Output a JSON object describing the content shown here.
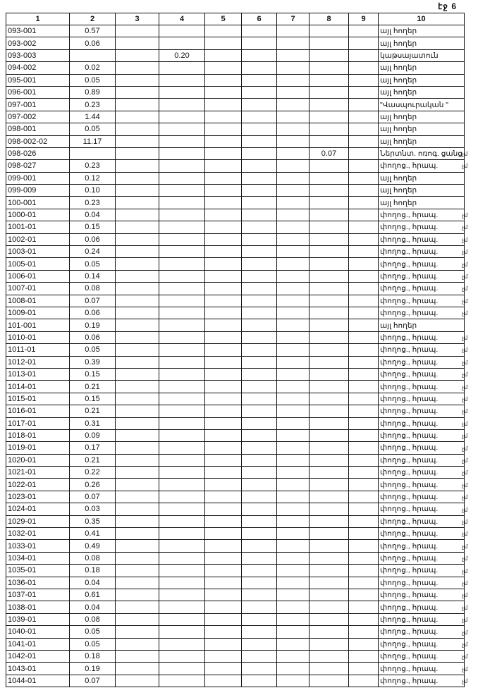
{
  "page_label": "էջ 6",
  "columns": [
    "1",
    "2",
    "3",
    "4",
    "5",
    "6",
    "7",
    "8",
    "9",
    "10"
  ],
  "margin_mark": "չմ",
  "rows": [
    {
      "c1": "093-001",
      "c2": "0.57",
      "c10": "այլ հողեր"
    },
    {
      "c1": "093-002",
      "c2": "0.06",
      "c10": "այլ հողեր"
    },
    {
      "c1": "093-003",
      "c4": "0.20",
      "c10": "կաթսայատուն"
    },
    {
      "c1": "094-002",
      "c2": "0.02",
      "c10": "այլ հողեր"
    },
    {
      "c1": "095-001",
      "c2": "0.05",
      "c10": "այլ հողեր"
    },
    {
      "c1": "096-001",
      "c2": "0.89",
      "c10": "այլ հողեր"
    },
    {
      "c1": "097-001",
      "c2": "0.23",
      "c10": "\"Վասպուրական \""
    },
    {
      "c1": "097-002",
      "c2": "1.44",
      "c10": "այլ հողեր"
    },
    {
      "c1": "098-001",
      "c2": "0.05",
      "c10": "այլ հողեր"
    },
    {
      "c1": "098-002-02",
      "c2": "11.17",
      "c10": "այլ հողեր"
    },
    {
      "c1": "098-026",
      "c8": "0.07",
      "c10": "Ներտնտ. ոռոգ. ցանց",
      "mark": true
    },
    {
      "c1": "098-027",
      "c2": "0.23",
      "c10": "փողոց., հրապ.",
      "mark": true
    },
    {
      "c1": "099-001",
      "c2": "0.12",
      "c10": "այլ հողեր"
    },
    {
      "c1": "099-009",
      "c2": "0.10",
      "c10": "այլ հողեր"
    },
    {
      "c1": "100-001",
      "c2": "0.23",
      "c10": "այլ հողեր"
    },
    {
      "c1": "1000-01",
      "c2": "0.04",
      "c10": "փողոց., հրապ.",
      "mark": true
    },
    {
      "c1": "1001-01",
      "c2": "0.15",
      "c10": "փողոց., հրապ.",
      "mark": true
    },
    {
      "c1": "1002-01",
      "c2": "0.06",
      "c10": "փողոց., հրապ.",
      "mark": true
    },
    {
      "c1": "1003-01",
      "c2": "0.24",
      "c10": "փողոց., հրապ.",
      "mark": true
    },
    {
      "c1": "1005-01",
      "c2": "0.05",
      "c10": "փողոց., հրապ.",
      "mark": true
    },
    {
      "c1": "1006-01",
      "c2": "0.14",
      "c10": "փողոց., հրապ.",
      "mark": true
    },
    {
      "c1": "1007-01",
      "c2": "0.08",
      "c10": "փողոց., հրապ.",
      "mark": true
    },
    {
      "c1": "1008-01",
      "c2": "0.07",
      "c10": "փողոց., հրապ.",
      "mark": true
    },
    {
      "c1": "1009-01",
      "c2": "0.06",
      "c10": "փողոց., հրապ.",
      "mark": true
    },
    {
      "c1": "101-001",
      "c2": "0.19",
      "c10": "այլ հողեր"
    },
    {
      "c1": "1010-01",
      "c2": "0.06",
      "c10": "փողոց., հրապ.",
      "mark": true
    },
    {
      "c1": "1011-01",
      "c2": "0.05",
      "c10": "փողոց., հրապ.",
      "mark": true
    },
    {
      "c1": "1012-01",
      "c2": "0.39",
      "c10": "փողոց., հրապ.",
      "mark": true
    },
    {
      "c1": "1013-01",
      "c2": "0.15",
      "c10": "փողոց., հրապ.",
      "mark": true
    },
    {
      "c1": "1014-01",
      "c2": "0.21",
      "c10": "փողոց., հրապ.",
      "mark": true
    },
    {
      "c1": "1015-01",
      "c2": "0.15",
      "c10": "փողոց., հրապ.",
      "mark": true
    },
    {
      "c1": "1016-01",
      "c2": "0.21",
      "c10": "փողոց., հրապ.",
      "mark": true
    },
    {
      "c1": "1017-01",
      "c2": "0.31",
      "c10": "փողոց., հրապ.",
      "mark": true
    },
    {
      "c1": "1018-01",
      "c2": "0.09",
      "c10": "փողոց., հրապ.",
      "mark": true
    },
    {
      "c1": "1019-01",
      "c2": "0.17",
      "c10": "փողոց., հրապ.",
      "mark": true
    },
    {
      "c1": "1020-01",
      "c2": "0.21",
      "c10": "փողոց., հրապ.",
      "mark": true
    },
    {
      "c1": "1021-01",
      "c2": "0.22",
      "c10": "փողոց., հրապ.",
      "mark": true
    },
    {
      "c1": "1022-01",
      "c2": "0.26",
      "c10": "փողոց., հրապ.",
      "mark": true
    },
    {
      "c1": "1023-01",
      "c2": "0.07",
      "c10": "փողոց., հրապ.",
      "mark": true
    },
    {
      "c1": "1024-01",
      "c2": "0.03",
      "c10": "փողոց., հրապ.",
      "mark": true
    },
    {
      "c1": "1029-01",
      "c2": "0.35",
      "c10": "փողոց., հրապ.",
      "mark": true
    },
    {
      "c1": "1032-01",
      "c2": "0.41",
      "c10": "փողոց., հրապ.",
      "mark": true
    },
    {
      "c1": "1033-01",
      "c2": "0.49",
      "c10": "փողոց., հրապ.",
      "mark": true
    },
    {
      "c1": "1034-01",
      "c2": "0.08",
      "c10": "փողոց., հրապ.",
      "mark": true
    },
    {
      "c1": "1035-01",
      "c2": "0.18",
      "c10": "փողոց., հրապ.",
      "mark": true
    },
    {
      "c1": "1036-01",
      "c2": "0.04",
      "c10": "փողոց., հրապ.",
      "mark": true
    },
    {
      "c1": "1037-01",
      "c2": "0.61",
      "c10": "փողոց., հրապ.",
      "mark": true
    },
    {
      "c1": "1038-01",
      "c2": "0.04",
      "c10": "փողոց., հրապ.",
      "mark": true
    },
    {
      "c1": "1039-01",
      "c2": "0.08",
      "c10": "փողոց., հրապ.",
      "mark": true
    },
    {
      "c1": "1040-01",
      "c2": "0.05",
      "c10": "փողոց., հրապ.",
      "mark": true
    },
    {
      "c1": "1041-01",
      "c2": "0.05",
      "c10": "փողոց., հրապ.",
      "mark": true
    },
    {
      "c1": "1042-01",
      "c2": "0.18",
      "c10": "փողոց., հրապ.",
      "mark": true
    },
    {
      "c1": "1043-01",
      "c2": "0.19",
      "c10": "փողոց., հրապ.",
      "mark": true
    },
    {
      "c1": "1044-01",
      "c2": "0.07",
      "c10": "փողոց., հրապ.",
      "mark": true
    }
  ]
}
